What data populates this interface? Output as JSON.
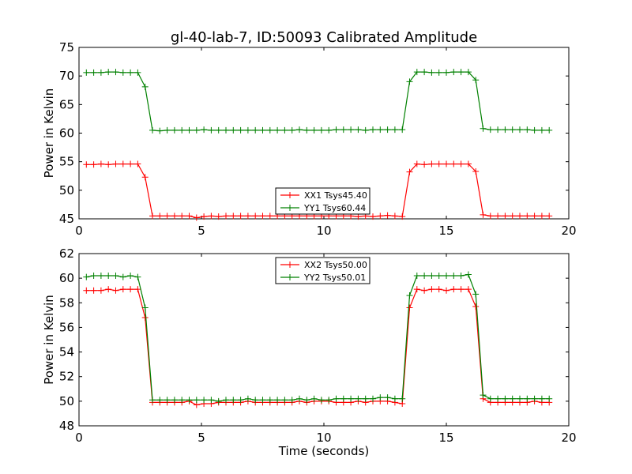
{
  "figure": {
    "background": "#ffffff"
  },
  "chart_data": [
    {
      "type": "line",
      "title": "gl-40-lab-7, ID:50093 Calibrated Amplitude",
      "xlabel": "",
      "ylabel": "Power in Kelvin",
      "xlim": [
        0,
        20
      ],
      "ylim": [
        45,
        75
      ],
      "xticks": [
        0,
        5,
        10,
        15,
        20
      ],
      "yticks": [
        45,
        50,
        55,
        60,
        65,
        70,
        75
      ],
      "grid": false,
      "legend_position": "lower-center",
      "x": [
        0.3,
        0.6,
        0.9,
        1.2,
        1.5,
        1.8,
        2.1,
        2.4,
        2.7,
        3.0,
        3.3,
        3.6,
        3.9,
        4.2,
        4.5,
        4.8,
        5.1,
        5.4,
        5.7,
        6.0,
        6.3,
        6.6,
        6.9,
        7.2,
        7.5,
        7.8,
        8.1,
        8.4,
        8.7,
        9.0,
        9.3,
        9.6,
        9.9,
        10.2,
        10.5,
        10.8,
        11.1,
        11.4,
        11.7,
        12.0,
        12.3,
        12.6,
        12.9,
        13.2,
        13.5,
        13.8,
        14.1,
        14.4,
        14.7,
        15.0,
        15.3,
        15.6,
        15.9,
        16.2,
        16.5,
        16.8,
        17.1,
        17.4,
        17.7,
        18.0,
        18.3,
        18.6,
        18.9,
        19.2
      ],
      "series": [
        {
          "name": "XX1 Tsys45.40",
          "color": "#ff0000",
          "values": [
            54.5,
            54.5,
            54.6,
            54.5,
            54.6,
            54.6,
            54.6,
            54.6,
            52.3,
            45.5,
            45.5,
            45.5,
            45.5,
            45.5,
            45.5,
            45.2,
            45.4,
            45.5,
            45.4,
            45.5,
            45.5,
            45.5,
            45.5,
            45.5,
            45.5,
            45.5,
            45.5,
            45.5,
            45.5,
            45.5,
            45.5,
            45.5,
            45.5,
            45.5,
            45.5,
            45.5,
            45.5,
            45.4,
            45.5,
            45.4,
            45.5,
            45.6,
            45.5,
            45.4,
            53.2,
            54.6,
            54.5,
            54.6,
            54.6,
            54.6,
            54.6,
            54.6,
            54.6,
            53.3,
            45.7,
            45.5,
            45.5,
            45.5,
            45.5,
            45.5,
            45.5,
            45.5,
            45.5,
            45.5
          ]
        },
        {
          "name": "YY1 Tsys60.44",
          "color": "#008000",
          "values": [
            70.6,
            70.6,
            70.6,
            70.7,
            70.7,
            70.6,
            70.6,
            70.6,
            68.1,
            60.5,
            60.4,
            60.5,
            60.5,
            60.5,
            60.5,
            60.5,
            60.6,
            60.5,
            60.5,
            60.5,
            60.5,
            60.5,
            60.5,
            60.5,
            60.5,
            60.5,
            60.5,
            60.5,
            60.5,
            60.6,
            60.5,
            60.5,
            60.5,
            60.5,
            60.6,
            60.6,
            60.6,
            60.6,
            60.5,
            60.6,
            60.6,
            60.6,
            60.6,
            60.6,
            69.0,
            70.7,
            70.7,
            70.6,
            70.6,
            70.6,
            70.7,
            70.7,
            70.7,
            69.3,
            60.8,
            60.6,
            60.6,
            60.6,
            60.6,
            60.6,
            60.6,
            60.5,
            60.5,
            60.5
          ]
        }
      ]
    },
    {
      "type": "line",
      "title": "",
      "xlabel": "Time (seconds)",
      "ylabel": "Power in Kelvin",
      "xlim": [
        0,
        20
      ],
      "ylim": [
        48,
        62
      ],
      "xticks": [
        0,
        5,
        10,
        15,
        20
      ],
      "yticks": [
        48,
        50,
        52,
        54,
        56,
        58,
        60,
        62
      ],
      "grid": false,
      "legend_position": "upper-center",
      "x": [
        0.3,
        0.6,
        0.9,
        1.2,
        1.5,
        1.8,
        2.1,
        2.4,
        2.7,
        3.0,
        3.3,
        3.6,
        3.9,
        4.2,
        4.5,
        4.8,
        5.1,
        5.4,
        5.7,
        6.0,
        6.3,
        6.6,
        6.9,
        7.2,
        7.5,
        7.8,
        8.1,
        8.4,
        8.7,
        9.0,
        9.3,
        9.6,
        9.9,
        10.2,
        10.5,
        10.8,
        11.1,
        11.4,
        11.7,
        12.0,
        12.3,
        12.6,
        12.9,
        13.2,
        13.5,
        13.8,
        14.1,
        14.4,
        14.7,
        15.0,
        15.3,
        15.6,
        15.9,
        16.2,
        16.5,
        16.8,
        17.1,
        17.4,
        17.7,
        18.0,
        18.3,
        18.6,
        18.9,
        19.2
      ],
      "series": [
        {
          "name": "XX2 Tsys50.00",
          "color": "#ff0000",
          "values": [
            59.0,
            59.0,
            59.0,
            59.1,
            59.0,
            59.1,
            59.1,
            59.1,
            56.8,
            49.9,
            49.9,
            49.9,
            49.9,
            49.9,
            50.0,
            49.7,
            49.8,
            49.8,
            49.9,
            49.9,
            49.9,
            49.9,
            50.0,
            49.9,
            49.9,
            49.9,
            49.9,
            49.9,
            49.9,
            50.0,
            49.9,
            50.0,
            50.0,
            50.0,
            49.9,
            49.9,
            49.9,
            50.0,
            49.9,
            50.0,
            50.0,
            50.0,
            49.9,
            49.8,
            57.6,
            59.1,
            59.0,
            59.1,
            59.1,
            59.0,
            59.1,
            59.1,
            59.1,
            57.7,
            50.2,
            49.9,
            49.9,
            49.9,
            49.9,
            49.9,
            49.9,
            50.0,
            49.9,
            49.9
          ]
        },
        {
          "name": "YY2 Tsys50.01",
          "color": "#008000",
          "values": [
            60.1,
            60.2,
            60.2,
            60.2,
            60.2,
            60.1,
            60.2,
            60.1,
            57.6,
            50.1,
            50.1,
            50.1,
            50.1,
            50.1,
            50.1,
            50.1,
            50.1,
            50.1,
            50.0,
            50.1,
            50.1,
            50.1,
            50.2,
            50.1,
            50.1,
            50.1,
            50.1,
            50.1,
            50.1,
            50.2,
            50.1,
            50.2,
            50.1,
            50.1,
            50.2,
            50.2,
            50.2,
            50.2,
            50.2,
            50.2,
            50.3,
            50.3,
            50.2,
            50.2,
            58.6,
            60.2,
            60.2,
            60.2,
            60.2,
            60.2,
            60.2,
            60.2,
            60.3,
            58.7,
            50.5,
            50.2,
            50.2,
            50.2,
            50.2,
            50.2,
            50.2,
            50.2,
            50.2,
            50.2
          ]
        }
      ]
    }
  ]
}
